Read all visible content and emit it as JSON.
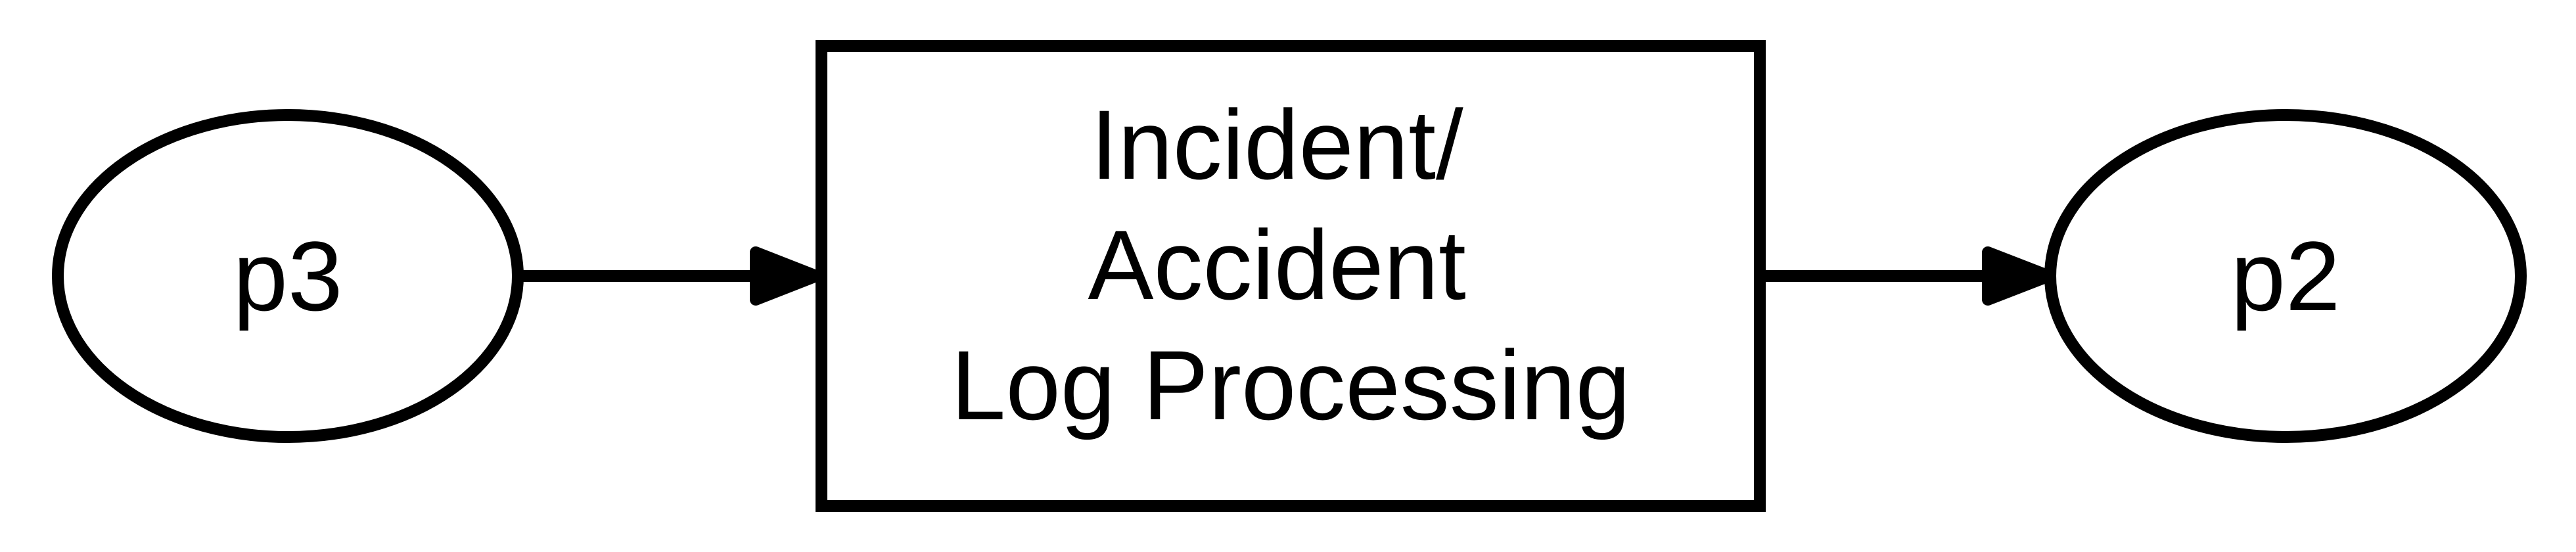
{
  "diagram": {
    "type": "flowchart",
    "nodes": {
      "p3": {
        "shape": "ellipse",
        "label": "p3"
      },
      "process": {
        "shape": "rectangle",
        "label_lines": [
          "Incident/",
          "Accident",
          "Log Processing"
        ]
      },
      "p2": {
        "shape": "ellipse",
        "label": "p2"
      }
    },
    "edges": [
      {
        "from": "p3",
        "to": "process",
        "directed": true
      },
      {
        "from": "process",
        "to": "p2",
        "directed": true
      }
    ],
    "colors": {
      "stroke": "#000000",
      "fill": "#ffffff",
      "text": "#000000"
    }
  }
}
